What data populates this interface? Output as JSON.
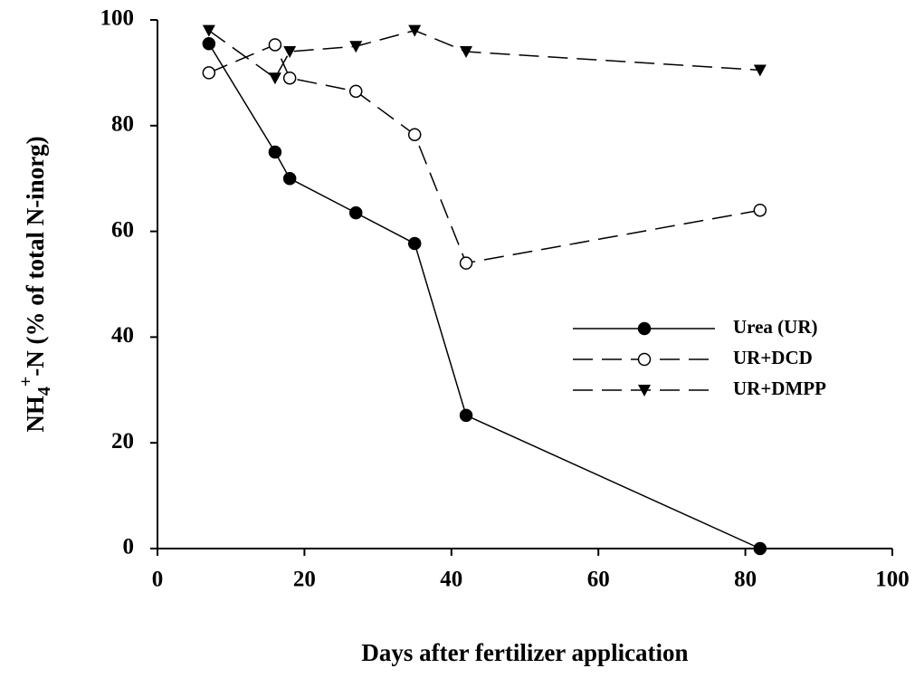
{
  "chart_data": {
    "type": "line",
    "x_label": "Days after fertilizer application",
    "y_label_parts": [
      "NH",
      "4",
      "+",
      "-N (% of total N-inorg)"
    ],
    "xlim": [
      0,
      100
    ],
    "xticks": [
      0,
      20,
      40,
      60,
      80,
      100
    ],
    "ylim": [
      0,
      100
    ],
    "yticks": [
      0,
      20,
      40,
      60,
      80,
      100
    ],
    "grid": false,
    "legend": "right",
    "series": [
      {
        "name": "Urea (UR)",
        "color": "#000000",
        "line_style": "solid",
        "marker": "filled-circle",
        "x": [
          7,
          16,
          18,
          27,
          35,
          42,
          82
        ],
        "values": [
          95.5,
          75,
          70,
          63.5,
          57.7,
          25.2,
          0
        ]
      },
      {
        "name": "UR+DCD",
        "color": "#000000",
        "line_style": "dashed",
        "marker": "open-circle",
        "x": [
          7,
          16,
          18,
          27,
          35,
          42,
          82
        ],
        "values": [
          90,
          95.3,
          89,
          86.5,
          78.3,
          54,
          64
        ]
      },
      {
        "name": "UR+DMPP",
        "color": "#000000",
        "line_style": "dashed",
        "marker": "filled-triangle-down",
        "x": [
          7,
          16,
          18,
          27,
          35,
          42,
          82
        ],
        "values": [
          98,
          89,
          94,
          95,
          98,
          94,
          90.5
        ]
      }
    ]
  }
}
